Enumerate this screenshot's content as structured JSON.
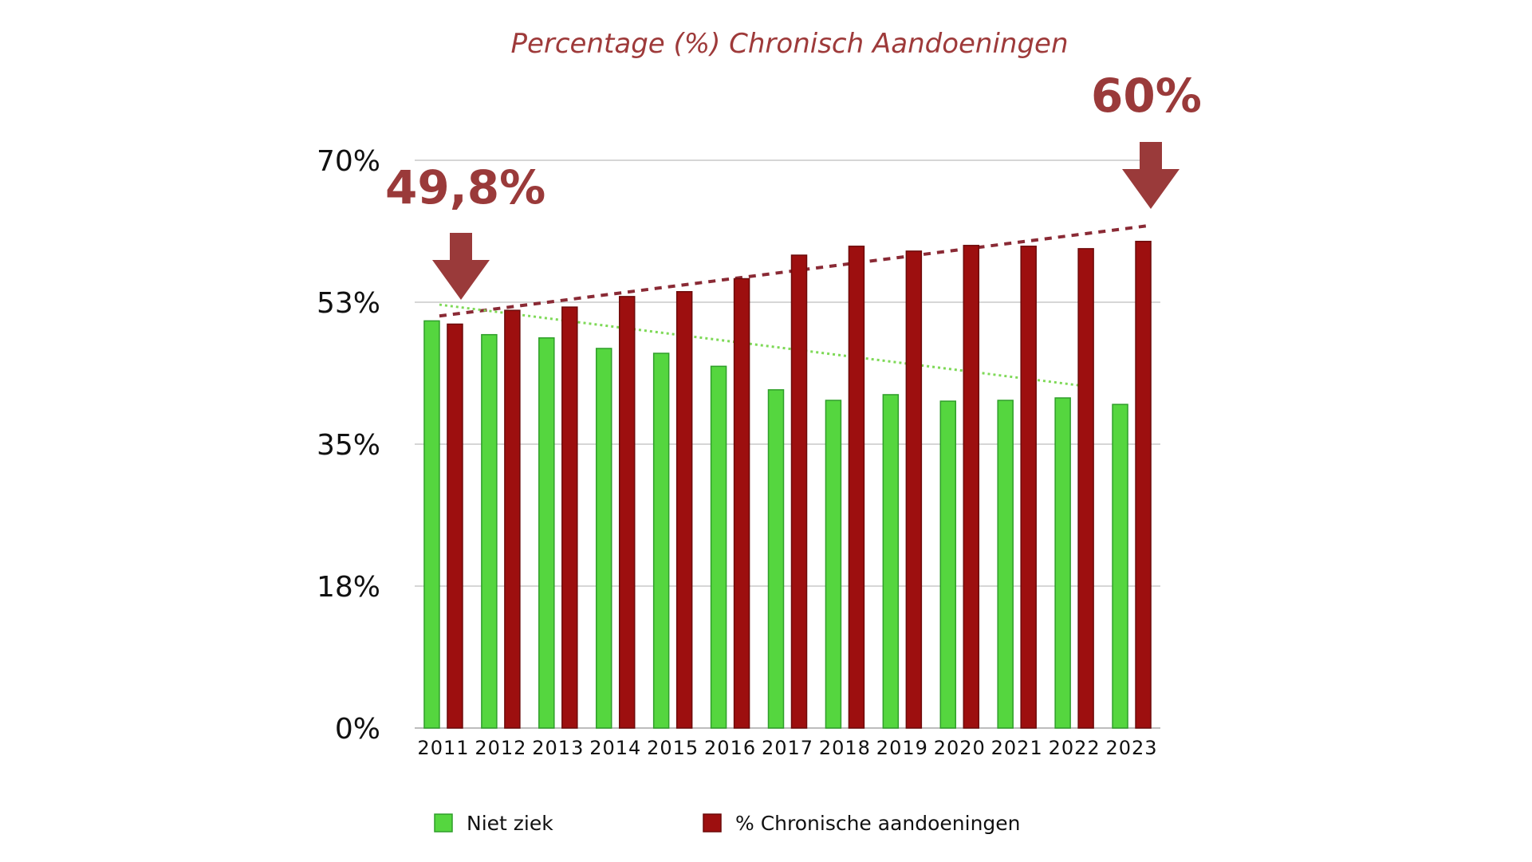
{
  "chart_data": {
    "type": "bar",
    "title": "Percentage (%) Chronisch Aandoeningen",
    "xlabel": "",
    "ylabel": "",
    "categories": [
      "2011",
      "2012",
      "2013",
      "2014",
      "2015",
      "2016",
      "2017",
      "2018",
      "2019",
      "2020",
      "2021",
      "2022",
      "2023"
    ],
    "series": [
      {
        "name": "Niet ziek",
        "color": "#55d63f",
        "values": [
          50.2,
          48.5,
          48.1,
          46.8,
          46.2,
          44.6,
          41.7,
          40.4,
          41.1,
          40.3,
          40.4,
          40.7,
          39.9
        ]
      },
      {
        "name": "% Chronische aandoeningen",
        "color": "#9d0f0f",
        "values": [
          49.8,
          51.5,
          51.9,
          53.2,
          53.8,
          55.4,
          58.3,
          59.4,
          58.8,
          59.5,
          59.4,
          59.1,
          60.0
        ]
      }
    ],
    "ylim": [
      0,
      70
    ],
    "yticks": [
      {
        "value": 0,
        "label": "0%"
      },
      {
        "value": 17.5,
        "label": "18%"
      },
      {
        "value": 35,
        "label": "35%"
      },
      {
        "value": 52.5,
        "label": "53%"
      },
      {
        "value": 70,
        "label": "70%"
      }
    ],
    "grid": true,
    "legend_position": "bottom",
    "trendlines": [
      {
        "series": "% Chronische aandoeningen",
        "style": "dashed",
        "color": "#8a2a35",
        "from": {
          "x": "2011",
          "y": 50.8
        },
        "to": {
          "x": "2023",
          "y": 61.9
        }
      },
      {
        "series": "Niet ziek",
        "style": "dotted",
        "color": "#7ed957",
        "from": {
          "x": "2011",
          "y": 52.2
        },
        "to": {
          "x": "2022",
          "y": 42.2
        }
      }
    ],
    "annotations": [
      {
        "text": "49,8%",
        "points_to": "2011",
        "color": "#9a3a3a",
        "arrow": "down"
      },
      {
        "text": "60%",
        "points_to": "2023",
        "color": "#9a3a3a",
        "arrow": "down"
      }
    ]
  }
}
